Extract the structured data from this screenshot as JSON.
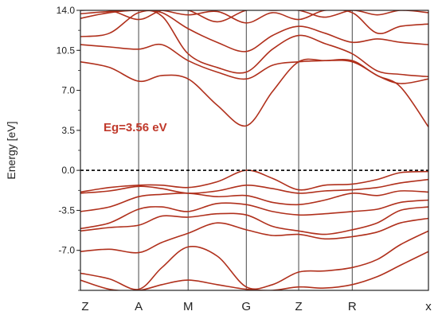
{
  "chart_data": {
    "type": "line",
    "title": "",
    "xlabel": "",
    "ylabel": "Energy [eV]",
    "ylim": [
      -10.5,
      14.0
    ],
    "yticks": [
      "14.0",
      "10.5",
      "7.0",
      "3.5",
      "0.0",
      "-3.5",
      "-7.0"
    ],
    "ytick_values": [
      14.0,
      10.5,
      7.0,
      3.5,
      0.0,
      -3.5,
      -7.0
    ],
    "kpoints": [
      {
        "label": "Z",
        "x": 0
      },
      {
        "label": "A",
        "x": 1
      },
      {
        "label": "M",
        "x": 1.85
      },
      {
        "label": "G",
        "x": 2.85
      },
      {
        "label": "Z",
        "x": 3.75
      },
      {
        "label": "R",
        "x": 4.67
      },
      {
        "label": "x",
        "x": 5.98
      }
    ],
    "fermi_level": 0.0,
    "annotation": "Eg=3.56 eV",
    "band_color": "#b0301c",
    "grid": false,
    "series": [
      {
        "x": [
          0,
          0.5,
          1,
          1.4,
          1.85,
          2.35,
          2.85,
          3.3,
          3.75,
          4.2,
          4.67,
          5.1,
          5.5,
          5.98
        ],
        "values": [
          -1.9,
          -1.5,
          -1.3,
          -1.3,
          -1.5,
          -1.0,
          0.0,
          -0.7,
          -1.7,
          -1.3,
          -1.2,
          -0.8,
          -0.2,
          -0.1
        ]
      },
      {
        "x": [
          0,
          0.5,
          1,
          1.4,
          1.85,
          2.35,
          2.85,
          3.3,
          3.75,
          4.2,
          4.67,
          5.1,
          5.5,
          5.98
        ],
        "values": [
          -2.0,
          -1.8,
          -1.4,
          -1.6,
          -2.0,
          -1.8,
          -1.3,
          -1.6,
          -2.0,
          -1.8,
          -1.7,
          -1.5,
          -1.1,
          -0.8
        ]
      },
      {
        "x": [
          0,
          0.5,
          1,
          1.4,
          1.85,
          2.35,
          2.85,
          3.3,
          3.75,
          4.2,
          4.67,
          5.1,
          5.5,
          5.98
        ],
        "values": [
          -3.6,
          -3.2,
          -2.3,
          -2.1,
          -2.0,
          -2.3,
          -2.2,
          -2.8,
          -3.0,
          -2.6,
          -2.0,
          -2.2,
          -1.8,
          -1.9
        ]
      },
      {
        "x": [
          0,
          0.5,
          1,
          1.4,
          1.85,
          2.35,
          2.85,
          3.3,
          3.75,
          4.2,
          4.67,
          5.1,
          5.5,
          5.98
        ],
        "values": [
          -5.1,
          -4.6,
          -3.4,
          -3.2,
          -3.6,
          -2.9,
          -3.0,
          -3.6,
          -3.9,
          -3.8,
          -3.6,
          -3.4,
          -2.8,
          -2.6
        ]
      },
      {
        "x": [
          0,
          0.5,
          1,
          1.4,
          1.85,
          2.35,
          2.85,
          3.3,
          3.75,
          4.2,
          4.67,
          5.1,
          5.5,
          5.98
        ],
        "values": [
          -5.3,
          -5.0,
          -4.8,
          -4.0,
          -4.1,
          -3.8,
          -3.9,
          -4.9,
          -5.3,
          -5.6,
          -5.2,
          -4.6,
          -3.5,
          -3.2
        ]
      },
      {
        "x": [
          0,
          0.5,
          1,
          1.4,
          1.85,
          2.35,
          2.85,
          3.3,
          3.75,
          4.2,
          4.67,
          5.1,
          5.5,
          5.98
        ],
        "values": [
          -7.1,
          -6.9,
          -7.2,
          -6.3,
          -5.5,
          -4.6,
          -5.2,
          -5.7,
          -5.6,
          -6.0,
          -5.8,
          -5.4,
          -4.6,
          -4.2
        ]
      },
      {
        "x": [
          0,
          0.5,
          1,
          1.4,
          1.85,
          2.35,
          2.85,
          3.3,
          3.75,
          4.2,
          4.67,
          5.1,
          5.5,
          5.98
        ],
        "values": [
          -9.0,
          -9.5,
          -10.4,
          -8.5,
          -6.7,
          -7.5,
          -10.2,
          -10.0,
          -8.9,
          -8.8,
          -8.5,
          -7.8,
          -6.5,
          -5.3
        ]
      },
      {
        "x": [
          0,
          0.5,
          1,
          1.4,
          1.85,
          2.35,
          2.85,
          3.3,
          3.75,
          4.2,
          4.67,
          5.1,
          5.5,
          5.98
        ],
        "values": [
          -9.6,
          -10.4,
          -10.5,
          -10.0,
          -9.6,
          -10.0,
          -10.4,
          -10.5,
          -10.2,
          -10.3,
          -10.0,
          -9.3,
          -8.3,
          -7.1
        ]
      },
      {
        "x": [
          0,
          0.5,
          1,
          1.4,
          1.85,
          2.35,
          2.85,
          3.3,
          3.75,
          4.2,
          4.67,
          5.1,
          5.5,
          5.98
        ],
        "values": [
          9.5,
          9.0,
          7.8,
          8.3,
          8.0,
          5.7,
          3.9,
          6.9,
          9.5,
          9.6,
          9.5,
          8.3,
          7.3,
          3.8
        ]
      },
      {
        "x": [
          0,
          0.5,
          1,
          1.4,
          1.85,
          2.35,
          2.85,
          3.3,
          3.75,
          4.2,
          4.67,
          5.1,
          5.5,
          5.98
        ],
        "values": [
          11.0,
          10.8,
          10.6,
          11.0,
          9.6,
          8.6,
          8.0,
          9.2,
          9.5,
          9.6,
          9.6,
          8.3,
          7.6,
          8.0
        ]
      },
      {
        "x": [
          0,
          0.5,
          1,
          1.4,
          1.85,
          2.35,
          2.85,
          3.3,
          3.75,
          4.2,
          4.67,
          5.1,
          5.5,
          5.98
        ],
        "values": [
          11.7,
          12.0,
          13.8,
          13.5,
          10.2,
          9.0,
          8.6,
          10.6,
          11.8,
          11.1,
          10.2,
          8.7,
          8.4,
          8.2
        ]
      },
      {
        "x": [
          0,
          0.5,
          1,
          1.4,
          1.85,
          2.35,
          2.85,
          3.3,
          3.75,
          4.2,
          4.67,
          5.1,
          5.5,
          5.98
        ],
        "values": [
          13.3,
          13.8,
          14.0,
          13.8,
          12.4,
          11.2,
          10.4,
          11.8,
          12.6,
          12.0,
          11.2,
          11.5,
          11.2,
          11.0
        ]
      },
      {
        "x": [
          0,
          0.5,
          1,
          1.4,
          1.85,
          2.35,
          2.85,
          3.3,
          3.75,
          4.2,
          4.67,
          5.1,
          5.5,
          5.98
        ],
        "values": [
          13.7,
          13.9,
          14.0,
          14.0,
          13.6,
          13.9,
          12.9,
          13.8,
          13.2,
          14.0,
          13.8,
          12.0,
          12.6,
          12.8
        ]
      },
      {
        "x": [
          0,
          0.5,
          1,
          1.4,
          1.85,
          2.35,
          2.85,
          3.3,
          3.75,
          4.2,
          4.67,
          5.1,
          5.5,
          5.98
        ],
        "values": [
          14.0,
          14.0,
          13.2,
          14.0,
          14.0,
          13.0,
          14.0,
          14.0,
          14.0,
          13.4,
          14.0,
          13.6,
          14.0,
          13.8
        ]
      }
    ]
  }
}
